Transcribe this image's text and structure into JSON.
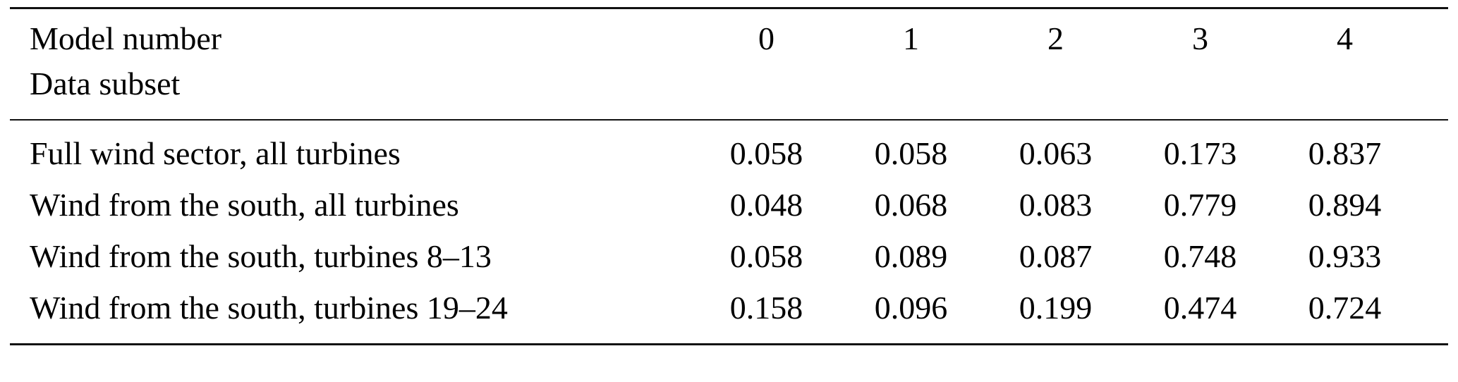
{
  "table": {
    "header": {
      "row_label_line1": "Model number",
      "row_label_line2": "Data subset",
      "columns": [
        "0",
        "1",
        "2",
        "3",
        "4"
      ]
    },
    "rows": [
      {
        "label": "Full wind sector, all turbines",
        "values": [
          "0.058",
          "0.058",
          "0.063",
          "0.173",
          "0.837"
        ]
      },
      {
        "label": "Wind from the south, all turbines",
        "values": [
          "0.048",
          "0.068",
          "0.083",
          "0.779",
          "0.894"
        ]
      },
      {
        "label": "Wind from the south, turbines 8–13",
        "values": [
          "0.058",
          "0.089",
          "0.087",
          "0.748",
          "0.933"
        ]
      },
      {
        "label": "Wind from the south, turbines 19–24",
        "values": [
          "0.158",
          "0.096",
          "0.199",
          "0.474",
          "0.724"
        ]
      }
    ],
    "style": {
      "rule_color": "#111111",
      "background": "#ffffff"
    }
  },
  "chart_data": {
    "type": "table",
    "title": "",
    "row_header_label": "Model number",
    "row_group_label": "Data subset",
    "categories": [
      "0",
      "1",
      "2",
      "3",
      "4"
    ],
    "series": [
      {
        "name": "Full wind sector, all turbines",
        "values": [
          0.058,
          0.058,
          0.063,
          0.173,
          0.837
        ]
      },
      {
        "name": "Wind from the south, all turbines",
        "values": [
          0.048,
          0.068,
          0.083,
          0.779,
          0.894
        ]
      },
      {
        "name": "Wind from the south, turbines 8–13",
        "values": [
          0.058,
          0.089,
          0.087,
          0.748,
          0.933
        ]
      },
      {
        "name": "Wind from the south, turbines 19–24",
        "values": [
          0.158,
          0.096,
          0.199,
          0.474,
          0.724
        ]
      }
    ]
  }
}
